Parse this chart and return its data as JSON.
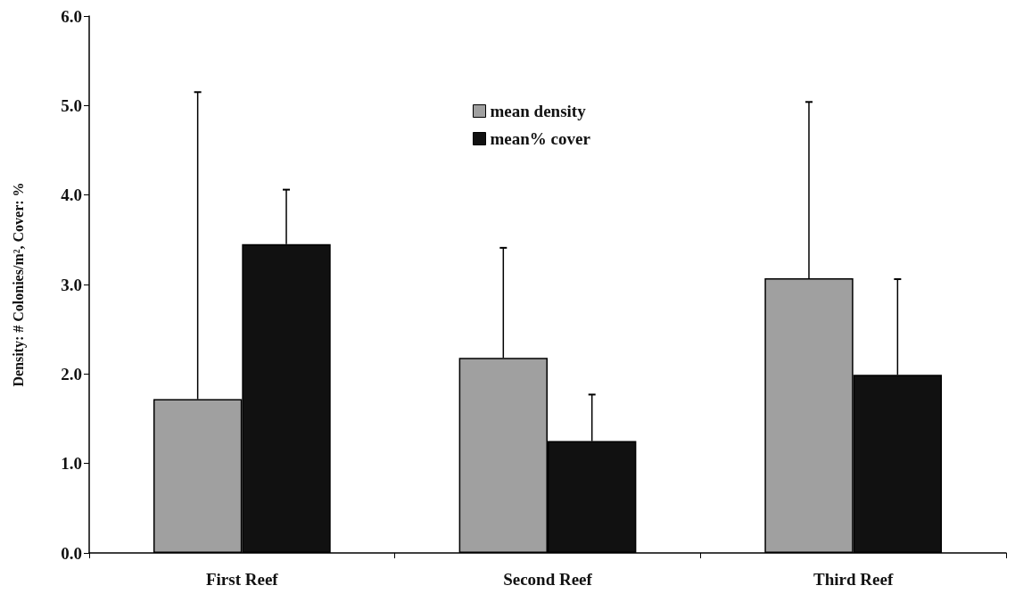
{
  "chart_data": {
    "type": "bar",
    "ylabel": "Density: # Colonies/m², Cover: %",
    "categories": [
      "First Reef",
      "Second Reef",
      "Third Reef"
    ],
    "series": [
      {
        "name": "mean density",
        "color": "#a0a0a0",
        "values": [
          1.72,
          2.18,
          3.07
        ],
        "errors": [
          [
            1.72,
            5.15
          ],
          [
            2.18,
            3.41
          ],
          [
            3.07,
            5.04
          ]
        ]
      },
      {
        "name": "mean% cover",
        "color": "#111111",
        "values": [
          3.45,
          1.25,
          1.99
        ],
        "errors": [
          [
            3.45,
            4.06
          ],
          [
            1.25,
            1.77
          ],
          [
            1.99,
            3.06
          ]
        ]
      }
    ],
    "ylim": [
      0,
      6
    ],
    "yticks": [
      {
        "value": 0,
        "label": "0.0"
      },
      {
        "value": 1,
        "label": "1.0"
      },
      {
        "value": 2,
        "label": "2.0"
      },
      {
        "value": 3,
        "label": "3.0"
      },
      {
        "value": 4,
        "label": "4.0"
      },
      {
        "value": 5,
        "label": "5.0"
      },
      {
        "value": 6,
        "label": "6.0"
      }
    ],
    "grid": false,
    "legend": "top"
  }
}
